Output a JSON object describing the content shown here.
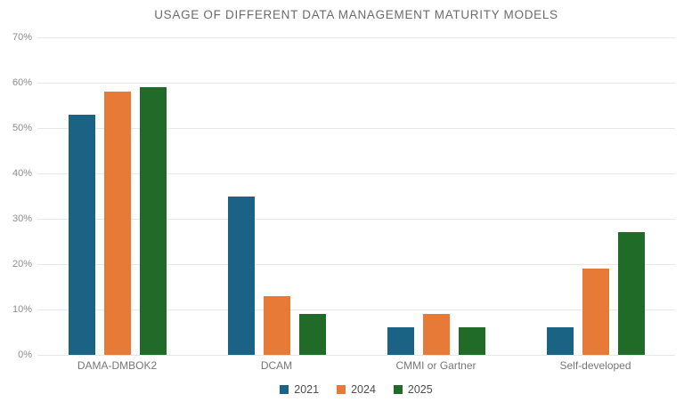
{
  "title": "USAGE OF DIFFERENT DATA MANAGEMENT MATURITY MODELS",
  "chart_data": {
    "type": "bar",
    "title": "USAGE OF DIFFERENT DATA MANAGEMENT MATURITY MODELS",
    "categories": [
      "DAMA-DMBOK2",
      "DCAM",
      "CMMI or Gartner",
      "Self-developed"
    ],
    "series": [
      {
        "name": "2021",
        "color": "#1B6385",
        "values": [
          53,
          35,
          6,
          6
        ]
      },
      {
        "name": "2024",
        "color": "#E87A38",
        "values": [
          58,
          13,
          9,
          19
        ]
      },
      {
        "name": "2025",
        "color": "#1F6B27",
        "values": [
          59,
          9,
          6,
          27
        ]
      }
    ],
    "xlabel": "",
    "ylabel": "",
    "ylim": [
      0,
      70
    ],
    "ytick_step": 10,
    "yticks": [
      "0%",
      "10%",
      "20%",
      "30%",
      "40%",
      "50%",
      "60%",
      "70%"
    ],
    "grid": true,
    "gridline_color": "#e7e7e7",
    "legend_position": "bottom"
  }
}
